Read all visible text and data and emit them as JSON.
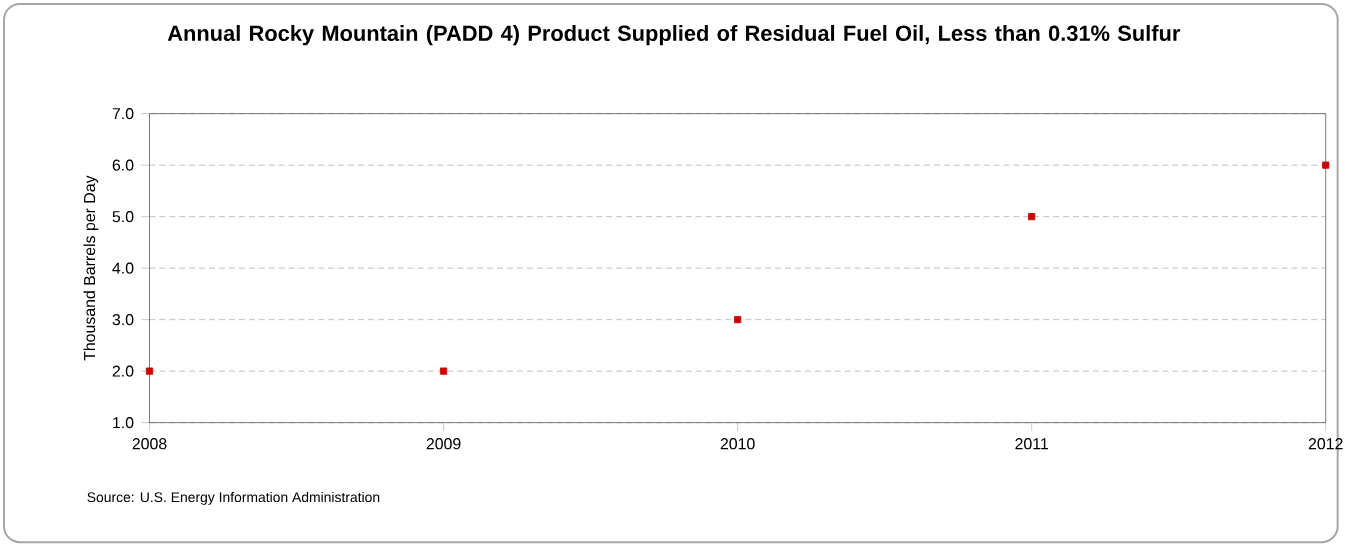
{
  "chart_data": {
    "type": "scatter",
    "title": "Annual Rocky Mountain (PADD 4) Product Supplied of Residual Fuel Oil, Less than 0.31% Sulfur",
    "ylabel": "Thousand Barrels per Day",
    "annotations": [
      "Source: U.S. Energy Information Administration"
    ],
    "x": [
      2008,
      2009,
      2010,
      2011,
      2012
    ],
    "series": [
      {
        "color": "#cc0000",
        "values": [
          2,
          2,
          3,
          5,
          6
        ]
      }
    ],
    "xlim": [
      2008,
      2012
    ],
    "xticks": [
      2008,
      2009,
      2010,
      2011,
      2012
    ],
    "ylim": [
      1,
      7
    ],
    "yticks": [
      {
        "value": 1,
        "label": "1.0"
      },
      {
        "value": 2,
        "label": "2.0"
      },
      {
        "value": 3,
        "label": "3.0"
      },
      {
        "value": 4,
        "label": "4.0"
      },
      {
        "value": 5,
        "label": "5.0"
      },
      {
        "value": 6,
        "label": "6.0"
      },
      {
        "value": 7,
        "label": "7.0"
      }
    ],
    "grid": "y",
    "marker": "square",
    "legend": false
  }
}
